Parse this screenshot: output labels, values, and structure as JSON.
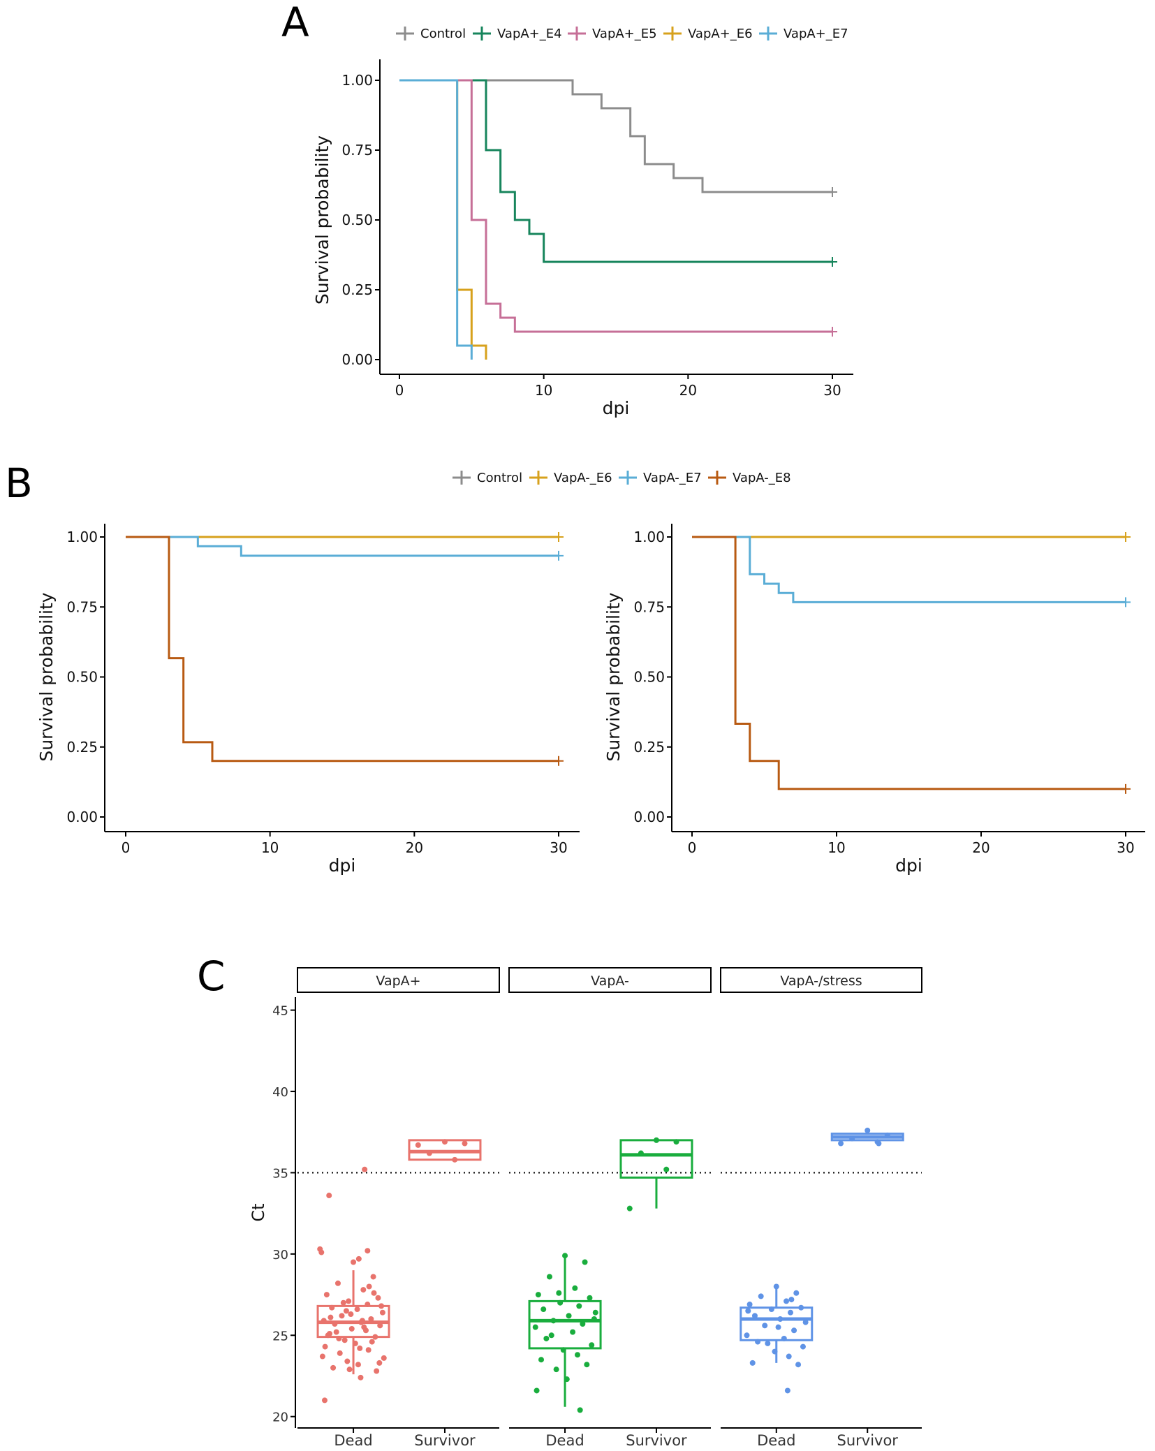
{
  "figure": {
    "panel_labels": [
      "A",
      "B",
      "C"
    ]
  },
  "colors": {
    "Control": "#8c8c8c",
    "VapA+_E4": "#17855c",
    "VapA+_E5": "#c66f97",
    "VapA+_E6": "#d7a11c",
    "VapA+_E7": "#5aadd6",
    "VapA-_E6": "#d7a11c",
    "VapA-_E7": "#5aadd6",
    "VapA-_E8": "#b85a12",
    "VapA+": "#e8736c",
    "VapA-": "#19ad3d",
    "VapA-/stress": "#5f93e6"
  },
  "chart_data": [
    {
      "id": "A",
      "type": "line",
      "step": true,
      "title": "",
      "xlabel": "dpi",
      "ylabel": "Survival probability",
      "xlim": [
        0,
        30
      ],
      "ylim": [
        0,
        1
      ],
      "xticks": [
        "0",
        "10",
        "20",
        "30"
      ],
      "yticks": [
        "0.00",
        "0.25",
        "0.50",
        "0.75",
        "1.00"
      ],
      "legend_position": "top",
      "legend": [
        "Control",
        "VapA+_E4",
        "VapA+_E5",
        "VapA+_E6",
        "VapA+_E7"
      ],
      "series": [
        {
          "name": "Control",
          "censor_at_end": true,
          "x": [
            0,
            12,
            14,
            16,
            17,
            19,
            21,
            30
          ],
          "y": [
            1.0,
            0.95,
            0.9,
            0.8,
            0.7,
            0.65,
            0.6,
            0.6
          ]
        },
        {
          "name": "VapA+_E4",
          "censor_at_end": true,
          "x": [
            0,
            6,
            7,
            8,
            9,
            10,
            30
          ],
          "y": [
            1.0,
            0.75,
            0.6,
            0.5,
            0.45,
            0.35,
            0.35
          ]
        },
        {
          "name": "VapA+_E5",
          "censor_at_end": true,
          "x": [
            0,
            5,
            6,
            7,
            8,
            30
          ],
          "y": [
            1.0,
            0.5,
            0.2,
            0.15,
            0.1,
            0.1
          ]
        },
        {
          "name": "VapA+_E6",
          "censor_at_end": false,
          "x": [
            0,
            4,
            5,
            6
          ],
          "y": [
            1.0,
            0.25,
            0.05,
            0.0
          ]
        },
        {
          "name": "VapA+_E7",
          "censor_at_end": false,
          "x": [
            0,
            4,
            5
          ],
          "y": [
            1.0,
            0.05,
            0.0
          ]
        }
      ]
    },
    {
      "id": "B-left",
      "type": "line",
      "step": true,
      "title": "",
      "xlabel": "dpi",
      "ylabel": "Survival probability",
      "xlim": [
        0,
        30
      ],
      "ylim": [
        0,
        1
      ],
      "xticks": [
        "0",
        "10",
        "20",
        "30"
      ],
      "yticks": [
        "0.00",
        "0.25",
        "0.50",
        "0.75",
        "1.00"
      ],
      "legend_position": "top",
      "legend": [
        "Control",
        "VapA-_E6",
        "VapA-_E7",
        "VapA-_E8"
      ],
      "series": [
        {
          "name": "Control",
          "censor_at_end": true,
          "x": [
            0,
            30
          ],
          "y": [
            1.0,
            1.0
          ]
        },
        {
          "name": "VapA-_E6",
          "censor_at_end": true,
          "x": [
            0,
            30
          ],
          "y": [
            1.0,
            1.0
          ]
        },
        {
          "name": "VapA-_E7",
          "censor_at_end": true,
          "x": [
            0,
            5,
            8,
            30
          ],
          "y": [
            1.0,
            0.967,
            0.933,
            0.933
          ]
        },
        {
          "name": "VapA-_E8",
          "censor_at_end": true,
          "x": [
            0,
            3,
            4,
            6,
            30
          ],
          "y": [
            1.0,
            0.567,
            0.267,
            0.2,
            0.2
          ]
        }
      ]
    },
    {
      "id": "B-right",
      "type": "line",
      "step": true,
      "title": "",
      "xlabel": "dpi",
      "ylabel": "Survival probability",
      "xlim": [
        0,
        30
      ],
      "ylim": [
        0,
        1
      ],
      "xticks": [
        "0",
        "10",
        "20",
        "30"
      ],
      "yticks": [
        "0.00",
        "0.25",
        "0.50",
        "0.75",
        "1.00"
      ],
      "series": [
        {
          "name": "Control",
          "censor_at_end": true,
          "x": [
            0,
            30
          ],
          "y": [
            1.0,
            1.0
          ]
        },
        {
          "name": "VapA-_E6",
          "censor_at_end": true,
          "x": [
            0,
            30
          ],
          "y": [
            1.0,
            1.0
          ]
        },
        {
          "name": "VapA-_E7",
          "censor_at_end": true,
          "x": [
            0,
            4,
            5,
            6,
            7,
            30
          ],
          "y": [
            1.0,
            0.867,
            0.833,
            0.8,
            0.767,
            0.767
          ]
        },
        {
          "name": "VapA-_E8",
          "censor_at_end": true,
          "x": [
            0,
            3,
            4,
            6,
            30
          ],
          "y": [
            1.0,
            0.333,
            0.2,
            0.1,
            0.1
          ]
        }
      ]
    },
    {
      "id": "C",
      "type": "boxplot",
      "title": "",
      "xlabel": "",
      "ylabel": "Ct",
      "ylim": [
        19.3,
        45.8
      ],
      "yticks": [
        20,
        25,
        30,
        35,
        40,
        45
      ],
      "reference_line": 35,
      "categories": [
        "Dead",
        "Survivor"
      ],
      "facets": [
        {
          "name": "VapA+",
          "groups": [
            {
              "category": "Dead",
              "q1": 24.9,
              "median": 25.8,
              "q3": 26.8,
              "whisker_low": 22.6,
              "whisker_high": 29.0,
              "outliers": [
                35.2,
                33.6,
                30.3,
                30.2,
                30.1,
                29.7,
                21.0,
                22.4
              ],
              "points": [
                29.5,
                28.6,
                28.2,
                27.8,
                27.5,
                27.3,
                27.1,
                26.9,
                26.7,
                26.6,
                26.4,
                26.2,
                26.0,
                25.9,
                25.8,
                25.7,
                25.6,
                25.4,
                25.3,
                25.1,
                24.9,
                24.7,
                24.5,
                24.3,
                24.1,
                23.9,
                23.6,
                23.4,
                23.2,
                23.0,
                22.8,
                26.3,
                25.5,
                25.0,
                24.6,
                27.0,
                26.8,
                25.2,
                24.2,
                23.7,
                28.0,
                22.9,
                27.6,
                26.1,
                25.9,
                24.8,
                23.3,
                26.5
              ]
            },
            {
              "category": "Survivor",
              "q1": 35.8,
              "median": 36.3,
              "q3": 37.0,
              "whisker_low": 35.8,
              "whisker_high": 37.0,
              "outliers": [],
              "points": [
                36.9,
                36.8,
                36.2,
                35.8,
                36.7
              ]
            }
          ]
        },
        {
          "name": "VapA-",
          "groups": [
            {
              "category": "Dead",
              "q1": 24.2,
              "median": 25.9,
              "q3": 27.1,
              "whisker_low": 20.6,
              "whisker_high": 29.8,
              "outliers": [],
              "points": [
                29.9,
                29.5,
                28.6,
                27.9,
                27.5,
                27.3,
                27.0,
                26.8,
                26.6,
                26.2,
                26.0,
                25.9,
                25.7,
                25.5,
                25.2,
                24.8,
                24.4,
                24.1,
                23.8,
                23.5,
                23.2,
                22.9,
                22.3,
                21.6,
                20.4,
                25.0,
                26.4,
                27.6
              ]
            },
            {
              "category": "Survivor",
              "q1": 34.7,
              "median": 36.1,
              "q3": 37.0,
              "whisker_low": 32.8,
              "whisker_high": 37.0,
              "outliers": [],
              "points": [
                37.0,
                36.9,
                36.2,
                35.2,
                32.8
              ]
            }
          ]
        },
        {
          "name": "VapA-/stress",
          "groups": [
            {
              "category": "Dead",
              "q1": 24.7,
              "median": 26.0,
              "q3": 26.7,
              "whisker_low": 23.3,
              "whisker_high": 27.9,
              "outliers": [
                21.6
              ],
              "points": [
                28.0,
                27.6,
                27.4,
                27.1,
                26.9,
                26.7,
                26.6,
                26.4,
                26.2,
                26.0,
                25.8,
                25.6,
                25.3,
                25.0,
                24.8,
                24.6,
                24.3,
                24.0,
                23.7,
                23.3,
                23.2,
                24.5,
                25.5,
                26.5,
                27.2
              ]
            },
            {
              "category": "Survivor",
              "q1": 37.0,
              "median": 37.2,
              "q3": 37.4,
              "whisker_low": 37.0,
              "whisker_high": 37.4,
              "outliers": [
                36.8
              ],
              "points": [
                37.6,
                37.3,
                37.1,
                36.9,
                36.8
              ]
            }
          ]
        }
      ]
    }
  ]
}
